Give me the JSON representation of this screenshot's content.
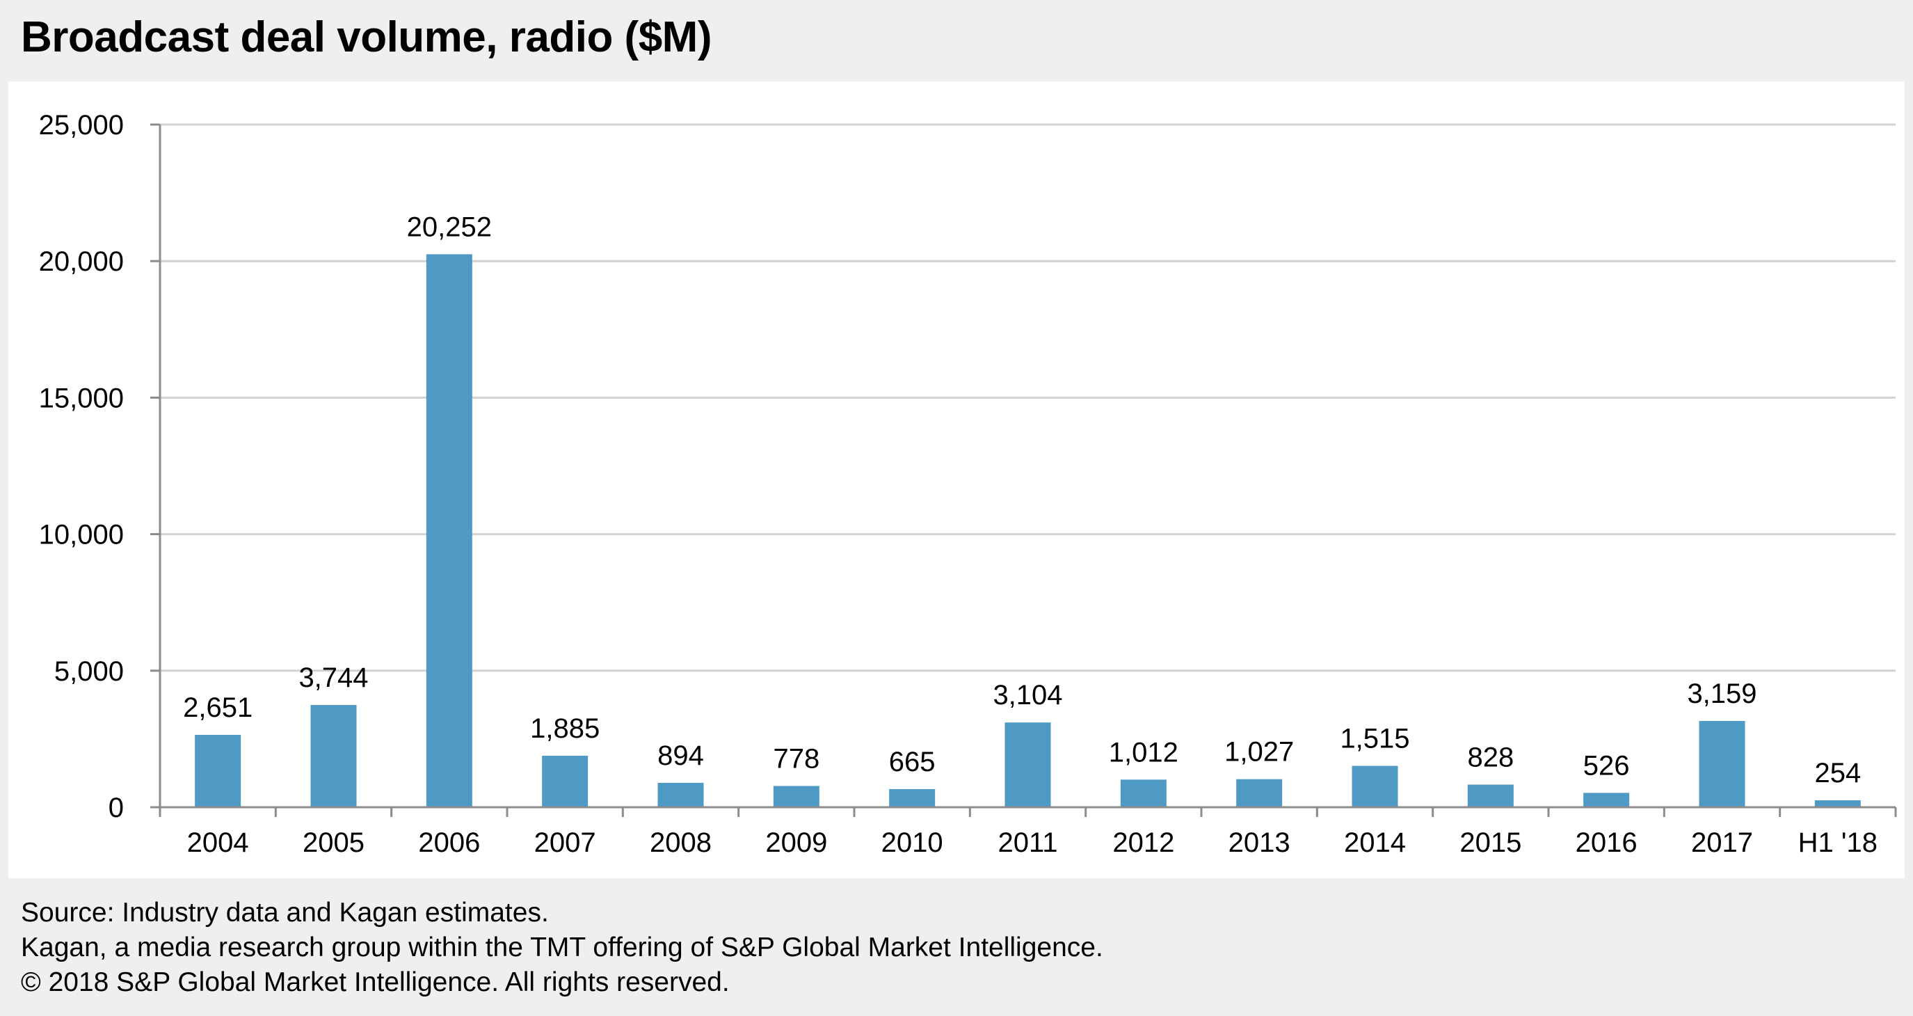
{
  "chart_data": {
    "type": "bar",
    "title": "Broadcast deal volume, radio ($M)",
    "categories": [
      "2004",
      "2005",
      "2006",
      "2007",
      "2008",
      "2009",
      "2010",
      "2011",
      "2012",
      "2013",
      "2014",
      "2015",
      "2016",
      "2017",
      "H1 '18"
    ],
    "values": [
      2651,
      3744,
      20252,
      1885,
      894,
      778,
      665,
      3104,
      1012,
      1027,
      1515,
      828,
      526,
      3159,
      254
    ],
    "data_labels": [
      "2,651",
      "3,744",
      "20,252",
      "1,885",
      "894",
      "778",
      "665",
      "3,104",
      "1,012",
      "1,027",
      "1,515",
      "828",
      "526",
      "3,159",
      "254"
    ],
    "y_ticks": [
      0,
      5000,
      10000,
      15000,
      20000,
      25000
    ],
    "y_tick_labels": [
      "0",
      "5,000",
      "10,000",
      "15,000",
      "20,000",
      "25,000"
    ],
    "ylim": [
      0,
      25000
    ],
    "xlabel": "",
    "ylabel": "",
    "grid": true,
    "bar_color": "#4f9ac5",
    "grid_color": "#d2d2d2",
    "axis_color": "#8c8c8c"
  },
  "footer": {
    "source": "Source: Industry data and Kagan estimates.",
    "attribution": "Kagan, a media research group within the TMT offering of S&P Global Market Intelligence.",
    "copyright": "© 2018 S&P Global Market Intelligence. All rights reserved."
  }
}
